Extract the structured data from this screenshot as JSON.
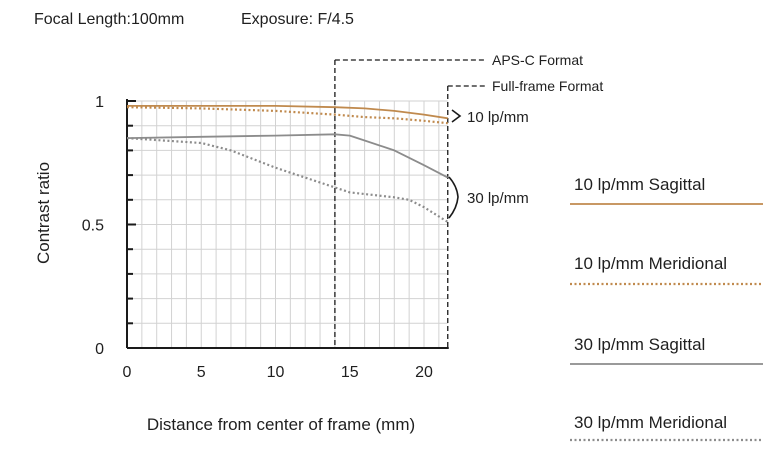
{
  "header": {
    "focal_length": "Focal Length:100mm",
    "exposure": "Exposure: F/4.5"
  },
  "chart_data": {
    "type": "line",
    "xlabel": "Distance from center of frame (mm)",
    "ylabel": "Contrast ratio",
    "xlim": [
      0,
      21.6
    ],
    "ylim": [
      0,
      1
    ],
    "x_ticks": [
      "0",
      "5",
      "10",
      "15",
      "20"
    ],
    "y_ticks": [
      "0",
      "0.5",
      "1"
    ],
    "grid": true,
    "legend_placement": "right",
    "format_markers": [
      {
        "label": "APS-C Format",
        "x": 14.0
      },
      {
        "label": "Full-frame Format",
        "x": 21.6
      }
    ],
    "group_labels": [
      "10 lp/mm",
      "30 lp/mm"
    ],
    "series": [
      {
        "name": "10 lp/mm Sagittal",
        "color": "#c08a4e",
        "style": "solid",
        "points": [
          [
            0,
            0.98
          ],
          [
            5,
            0.98
          ],
          [
            10,
            0.98
          ],
          [
            14,
            0.975
          ],
          [
            16,
            0.97
          ],
          [
            18,
            0.96
          ],
          [
            20,
            0.945
          ],
          [
            21.6,
            0.93
          ]
        ]
      },
      {
        "name": "10 lp/mm Meridional",
        "color": "#c08a4e",
        "style": "dotted",
        "points": [
          [
            0,
            0.975
          ],
          [
            5,
            0.97
          ],
          [
            10,
            0.96
          ],
          [
            14,
            0.945
          ],
          [
            16,
            0.935
          ],
          [
            18,
            0.93
          ],
          [
            20,
            0.92
          ],
          [
            21.6,
            0.91
          ]
        ]
      },
      {
        "name": "30 lp/mm Sagittal",
        "color": "#8c8c8c",
        "style": "solid",
        "points": [
          [
            0,
            0.85
          ],
          [
            5,
            0.855
          ],
          [
            10,
            0.86
          ],
          [
            14,
            0.865
          ],
          [
            15,
            0.86
          ],
          [
            16,
            0.84
          ],
          [
            18,
            0.8
          ],
          [
            20,
            0.74
          ],
          [
            21.6,
            0.69
          ]
        ]
      },
      {
        "name": "30 lp/mm Meridional",
        "color": "#8c8c8c",
        "style": "dotted",
        "points": [
          [
            0,
            0.85
          ],
          [
            5,
            0.83
          ],
          [
            7,
            0.8
          ],
          [
            10,
            0.73
          ],
          [
            12,
            0.69
          ],
          [
            13,
            0.67
          ],
          [
            15,
            0.63
          ],
          [
            18,
            0.61
          ],
          [
            19,
            0.6
          ],
          [
            20,
            0.57
          ],
          [
            21.6,
            0.51
          ]
        ]
      }
    ]
  }
}
